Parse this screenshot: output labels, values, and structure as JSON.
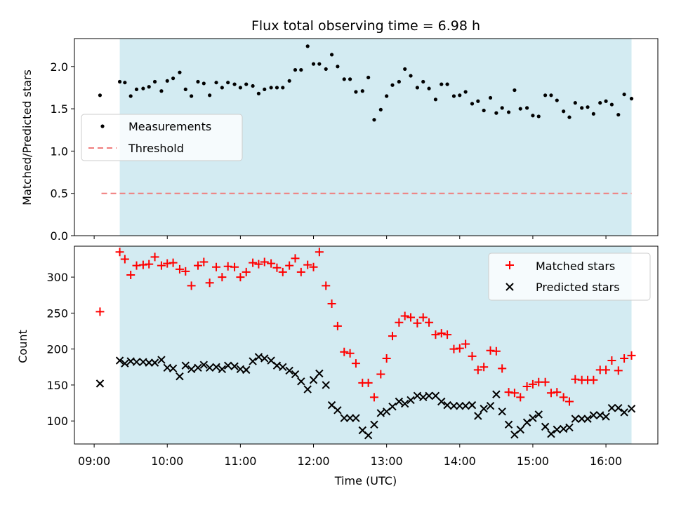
{
  "figure": {
    "title": "Flux total observing time = 6.98 h",
    "xlabel": "Time (UTC)",
    "xticks": [
      "09:00",
      "10:00",
      "11:00",
      "12:00",
      "13:00",
      "14:00",
      "15:00",
      "16:00"
    ],
    "colors": {
      "span": "#d3ebf2",
      "measurement": "#000000",
      "threshold": "#f07c7c",
      "matched": "#ff0000",
      "predicted": "#000000"
    }
  },
  "chart_data": [
    {
      "type": "scatter",
      "ylabel": "Matched/Predicted stars",
      "xlim": [
        8.73,
        16.71
      ],
      "ylim": [
        0,
        2.33
      ],
      "yticks": [
        "0.0",
        "0.5",
        "1.0",
        "1.5",
        "2.0"
      ],
      "shaded_span": [
        9.35,
        16.35
      ],
      "legend": {
        "placement": "center-left",
        "entries": [
          "Measurements",
          "Threshold"
        ]
      },
      "threshold": {
        "name": "Threshold",
        "y": 0.5,
        "x": [
          9.1,
          16.35
        ]
      },
      "series": [
        {
          "name": "Measurements",
          "x": [
            9.08,
            9.35,
            9.42,
            9.5,
            9.58,
            9.67,
            9.75,
            9.83,
            9.92,
            10.0,
            10.08,
            10.17,
            10.25,
            10.33,
            10.42,
            10.5,
            10.58,
            10.67,
            10.75,
            10.83,
            10.92,
            11.0,
            11.08,
            11.17,
            11.25,
            11.33,
            11.42,
            11.5,
            11.58,
            11.67,
            11.75,
            11.83,
            11.92,
            12.0,
            12.08,
            12.17,
            12.25,
            12.33,
            12.42,
            12.5,
            12.58,
            12.67,
            12.75,
            12.83,
            12.92,
            13.0,
            13.08,
            13.17,
            13.25,
            13.33,
            13.42,
            13.5,
            13.58,
            13.67,
            13.75,
            13.83,
            13.92,
            14.0,
            14.08,
            14.17,
            14.25,
            14.33,
            14.42,
            14.5,
            14.58,
            14.67,
            14.75,
            14.83,
            14.92,
            15.0,
            15.08,
            15.17,
            15.25,
            15.33,
            15.42,
            15.5,
            15.58,
            15.67,
            15.75,
            15.83,
            15.92,
            16.0,
            16.08,
            16.17,
            16.25,
            16.35
          ],
          "y": [
            1.66,
            1.82,
            1.81,
            1.65,
            1.73,
            1.74,
            1.76,
            1.82,
            1.71,
            1.83,
            1.86,
            1.93,
            1.73,
            1.65,
            1.82,
            1.8,
            1.66,
            1.81,
            1.75,
            1.81,
            1.79,
            1.75,
            1.79,
            1.77,
            1.68,
            1.73,
            1.75,
            1.75,
            1.75,
            1.83,
            1.96,
            1.96,
            2.24,
            2.03,
            2.03,
            1.97,
            2.14,
            2.0,
            1.85,
            1.85,
            1.7,
            1.71,
            1.87,
            1.37,
            1.49,
            1.65,
            1.78,
            1.82,
            1.97,
            1.89,
            1.75,
            1.82,
            1.74,
            1.61,
            1.79,
            1.79,
            1.65,
            1.66,
            1.7,
            1.56,
            1.59,
            1.48,
            1.63,
            1.45,
            1.51,
            1.46,
            1.72,
            1.5,
            1.51,
            1.42,
            1.41,
            1.66,
            1.66,
            1.6,
            1.47,
            1.4,
            1.57,
            1.51,
            1.52,
            1.44,
            1.57,
            1.59,
            1.55,
            1.43,
            1.67,
            1.62
          ]
        }
      ]
    },
    {
      "type": "scatter",
      "ylabel": "Count",
      "xlim": [
        8.73,
        16.71
      ],
      "ylim": [
        68,
        343
      ],
      "yticks": [
        "100",
        "150",
        "200",
        "250",
        "300"
      ],
      "shaded_span": [
        9.35,
        16.35
      ],
      "legend": {
        "placement": "top-right",
        "entries": [
          "Matched stars",
          "Predicted stars"
        ]
      },
      "series": [
        {
          "name": "Matched stars",
          "marker": "+",
          "x": [
            9.08,
            9.35,
            9.42,
            9.5,
            9.58,
            9.67,
            9.75,
            9.83,
            9.92,
            10.0,
            10.08,
            10.17,
            10.25,
            10.33,
            10.42,
            10.5,
            10.58,
            10.67,
            10.75,
            10.83,
            10.92,
            11.0,
            11.08,
            11.17,
            11.25,
            11.33,
            11.42,
            11.5,
            11.58,
            11.67,
            11.75,
            11.83,
            11.92,
            12.0,
            12.08,
            12.17,
            12.25,
            12.33,
            12.42,
            12.5,
            12.58,
            12.67,
            12.75,
            12.83,
            12.92,
            13.0,
            13.08,
            13.17,
            13.25,
            13.33,
            13.42,
            13.5,
            13.58,
            13.67,
            13.75,
            13.83,
            13.92,
            14.0,
            14.08,
            14.17,
            14.25,
            14.33,
            14.42,
            14.5,
            14.58,
            14.67,
            14.75,
            14.83,
            14.92,
            15.0,
            15.08,
            15.17,
            15.25,
            15.33,
            15.42,
            15.5,
            15.58,
            15.67,
            15.75,
            15.83,
            15.92,
            16.0,
            16.08,
            16.17,
            16.25,
            16.35
          ],
          "y": [
            252,
            335,
            325,
            303,
            316,
            317,
            318,
            328,
            316,
            319,
            320,
            311,
            308,
            288,
            316,
            321,
            292,
            314,
            300,
            315,
            314,
            300,
            307,
            320,
            318,
            321,
            319,
            313,
            307,
            316,
            326,
            307,
            317,
            314,
            335,
            288,
            263,
            232,
            196,
            194,
            180,
            153,
            153,
            133,
            165,
            187,
            218,
            237,
            246,
            244,
            236,
            244,
            237,
            220,
            222,
            220,
            200,
            201,
            207,
            190,
            171,
            175,
            198,
            197,
            173,
            140,
            139,
            133,
            148,
            151,
            154,
            154,
            139,
            140,
            133,
            127,
            158,
            157,
            157,
            157,
            171,
            171,
            184,
            170,
            187,
            191
          ]
        },
        {
          "name": "Predicted stars",
          "marker": "x",
          "x": [
            9.08,
            9.35,
            9.42,
            9.5,
            9.58,
            9.67,
            9.75,
            9.83,
            9.92,
            10.0,
            10.08,
            10.17,
            10.25,
            10.33,
            10.42,
            10.5,
            10.58,
            10.67,
            10.75,
            10.83,
            10.92,
            11.0,
            11.08,
            11.17,
            11.25,
            11.33,
            11.42,
            11.5,
            11.58,
            11.67,
            11.75,
            11.83,
            11.92,
            12.0,
            12.08,
            12.17,
            12.25,
            12.33,
            12.42,
            12.5,
            12.58,
            12.67,
            12.75,
            12.83,
            12.92,
            13.0,
            13.08,
            13.17,
            13.25,
            13.33,
            13.42,
            13.5,
            13.58,
            13.67,
            13.75,
            13.83,
            13.92,
            14.0,
            14.08,
            14.17,
            14.25,
            14.33,
            14.42,
            14.5,
            14.58,
            14.67,
            14.75,
            14.83,
            14.92,
            15.0,
            15.08,
            15.17,
            15.25,
            15.33,
            15.42,
            15.5,
            15.58,
            15.67,
            15.75,
            15.83,
            15.92,
            16.0,
            16.08,
            16.17,
            16.25,
            16.35
          ],
          "y": [
            152,
            184,
            180,
            183,
            182,
            182,
            181,
            181,
            185,
            174,
            173,
            162,
            177,
            172,
            174,
            178,
            174,
            175,
            172,
            177,
            176,
            172,
            171,
            183,
            189,
            187,
            184,
            177,
            175,
            170,
            165,
            155,
            144,
            157,
            166,
            150,
            122,
            115,
            104,
            104,
            104,
            87,
            80,
            95,
            111,
            113,
            120,
            127,
            124,
            129,
            135,
            133,
            135,
            135,
            127,
            122,
            121,
            121,
            121,
            122,
            107,
            117,
            121,
            137,
            113,
            95,
            81,
            88,
            98,
            104,
            109,
            92,
            82,
            88,
            89,
            91,
            103,
            103,
            103,
            108,
            108,
            106,
            118,
            118,
            112,
            117
          ]
        }
      ]
    }
  ]
}
